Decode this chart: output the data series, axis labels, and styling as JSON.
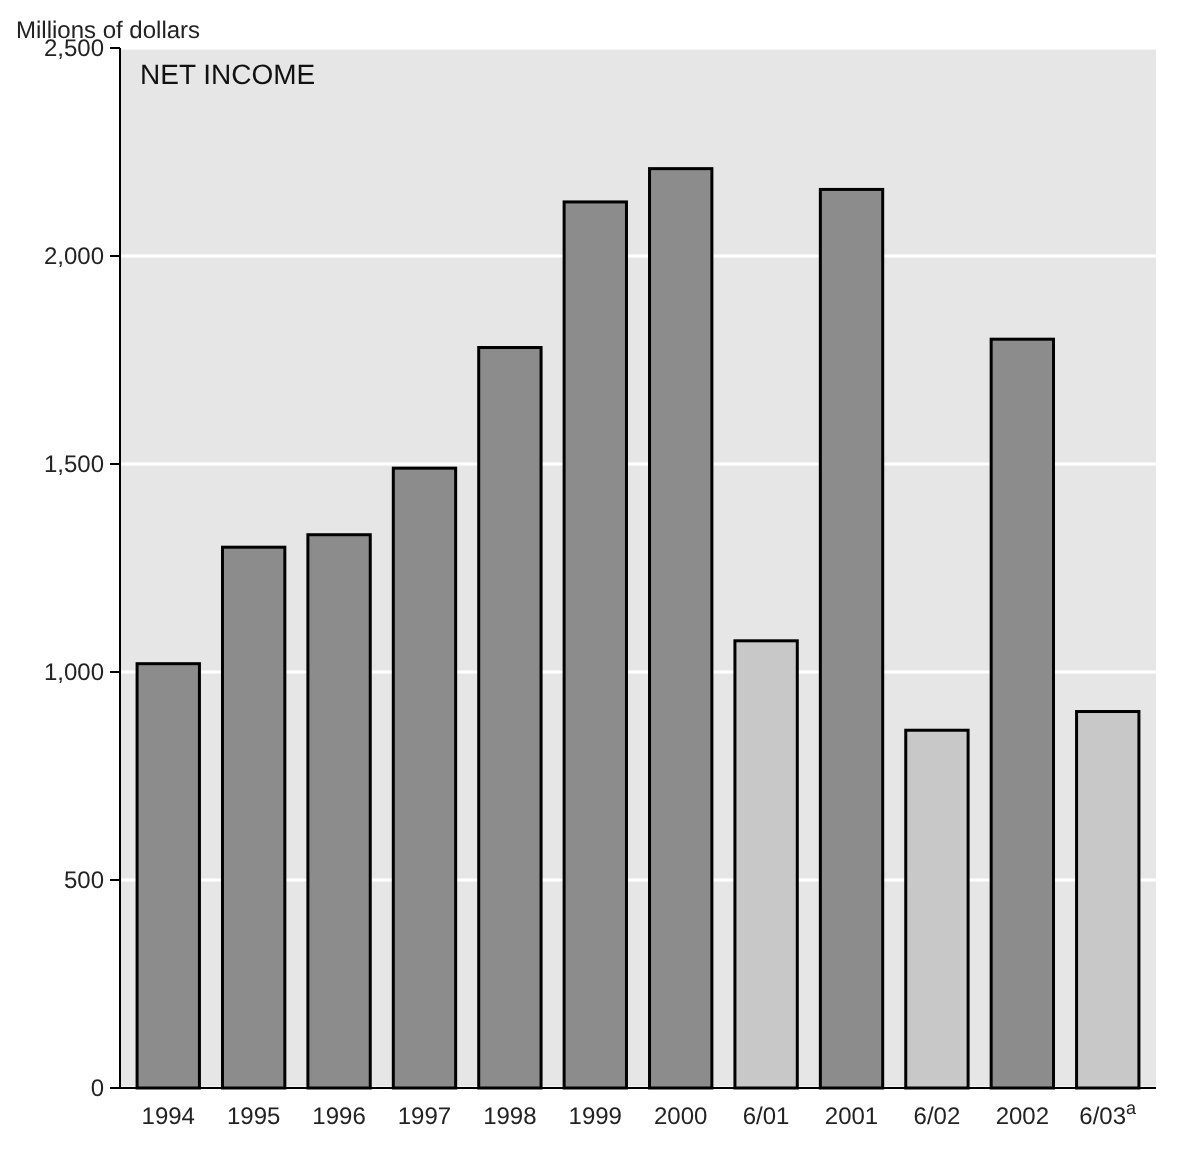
{
  "chart_data": {
    "type": "bar",
    "title": "NET INCOME",
    "ylabel": "Millions of dollars",
    "categories": [
      "1994",
      "1995",
      "1996",
      "1997",
      "1998",
      "1999",
      "2000",
      "6/01",
      "2001",
      "6/02",
      "2002",
      "6/03$^{a}$"
    ],
    "values": [
      1020,
      1300,
      1330,
      1490,
      1780,
      2130,
      2210,
      1075,
      2160,
      860,
      1800,
      905
    ],
    "colors": [
      "#8c8c8c",
      "#8c8c8c",
      "#8c8c8c",
      "#8c8c8c",
      "#8c8c8c",
      "#8c8c8c",
      "#8c8c8c",
      "#c8c8c8",
      "#8c8c8c",
      "#c8c8c8",
      "#8c8c8c",
      "#c8c8c8"
    ],
    "ylim": [
      0,
      2500
    ],
    "yticks": [
      0,
      500,
      {
        "value": 1000,
        "label": "1,000"
      },
      {
        "value": 1500,
        "label": "1,500"
      },
      {
        "value": 2000,
        "label": "2,000"
      },
      {
        "value": 2500,
        "label": "2,500"
      }
    ],
    "grid": "y"
  }
}
